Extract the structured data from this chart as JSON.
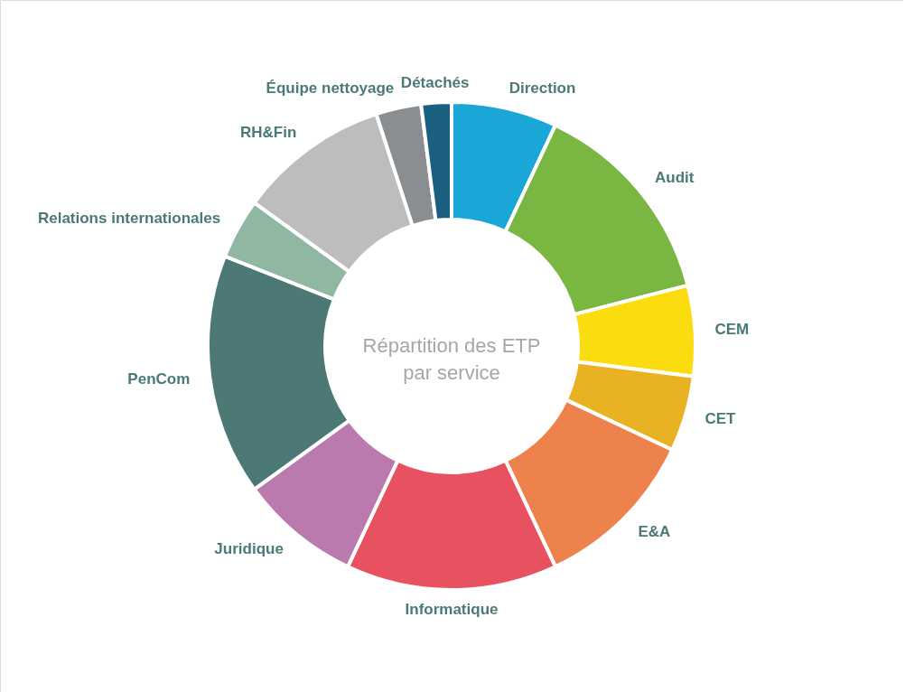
{
  "chart_data": {
    "type": "donut",
    "title": "Répartition des ETP par service",
    "categories": [
      "Direction",
      "Audit",
      "CEM",
      "CET",
      "E&A",
      "Informatique",
      "Juridique",
      "PenCom",
      "Relations internationales",
      "RH&Fin",
      "Équipe nettoyage",
      "Détachés"
    ],
    "values": [
      7,
      14,
      6,
      5,
      11,
      14,
      8,
      16,
      4,
      10,
      3,
      2
    ],
    "colors": [
      "#1aa7d8",
      "#7ab642",
      "#fbdc0e",
      "#e8b222",
      "#ee824c",
      "#e75160",
      "#ba7aae",
      "#4c7876",
      "#8fb7a1",
      "#bdbdbd",
      "#8a8e91",
      "#1b5f80"
    ]
  }
}
